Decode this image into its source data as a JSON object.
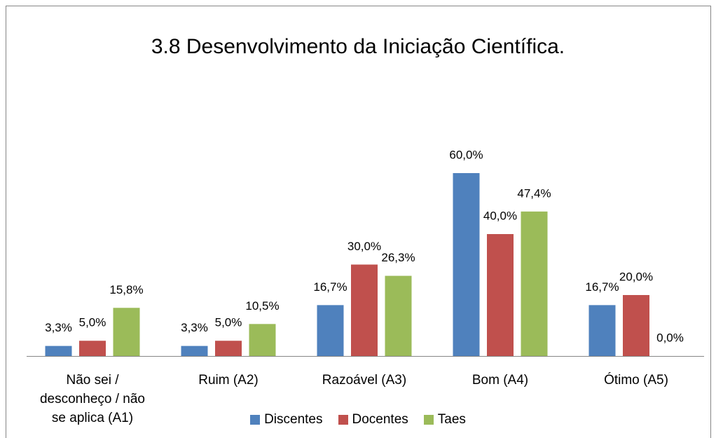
{
  "chart_data": {
    "type": "bar",
    "title": "3.8 Desenvolvimento da Iniciação Científica.",
    "categories": [
      "Não sei / desconheço / não se aplica (A1)",
      "Ruim (A2)",
      "Razoável (A3)",
      "Bom (A4)",
      "Ótimo (A5)"
    ],
    "series": [
      {
        "name": "Discentes",
        "color": "#4f81bd",
        "values": [
          3.3,
          3.3,
          16.7,
          60.0,
          16.7
        ],
        "value_labels": [
          "3,3%",
          "3,3%",
          "16,7%",
          "60,0%",
          "16,7%"
        ]
      },
      {
        "name": "Docentes",
        "color": "#c0504d",
        "values": [
          5.0,
          5.0,
          30.0,
          40.0,
          20.0
        ],
        "value_labels": [
          "5,0%",
          "5,0%",
          "30,0%",
          "40,0%",
          "20,0%"
        ]
      },
      {
        "name": "Taes",
        "color": "#9bbb59",
        "values": [
          15.8,
          10.5,
          26.3,
          47.4,
          0.0
        ],
        "value_labels": [
          "15,8%",
          "10,5%",
          "26,3%",
          "47,4%",
          "0,0%"
        ]
      }
    ],
    "legend": "bottom"
  }
}
